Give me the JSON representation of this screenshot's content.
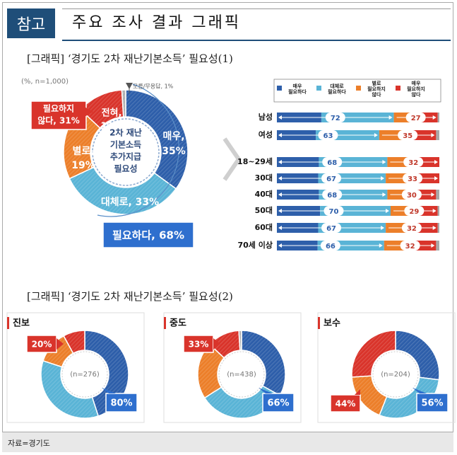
{
  "header": {
    "badge": "참고",
    "title": "주요 조사 결과 그래픽"
  },
  "section1": {
    "title": "[그래픽] ‘경기도 2차 재난기본소득’ 필요성(1)",
    "sample_note": "(%, n=1,000)",
    "small_note": "모름/무응답, 1%",
    "donut_center": [
      "2차 재난",
      "기본소득",
      "추가지급",
      "필요성"
    ],
    "labels": {
      "very": [
        "매우,",
        "35%"
      ],
      "somewhat": [
        "대체로, 33%"
      ],
      "not_much": [
        "별로,",
        "19%"
      ],
      "not_at_all": [
        "전혀,",
        "12%"
      ],
      "need_box": "필요하다, 68%",
      "not_need_box": [
        "필요하지",
        "않다, 31%"
      ]
    }
  },
  "legend": [
    {
      "label": [
        "매우",
        "필요하다"
      ],
      "color": "#2e5faa"
    },
    {
      "label": [
        "대체로",
        "필요하다"
      ],
      "color": "#5ab4d6"
    },
    {
      "label": [
        "별로",
        "필요하지",
        "않다"
      ],
      "color": "#ec7f2a"
    },
    {
      "label": [
        "매우",
        "필요하지",
        "않다"
      ],
      "color": "#d9342b"
    }
  ],
  "section2": {
    "title": "[그래픽] ‘경기도 2차 재난기본소득’ 필요성(2)",
    "panels": [
      {
        "name": "진보",
        "n": "(n=276)",
        "need": "80%",
        "notneed": "20%"
      },
      {
        "name": "중도",
        "n": "(n=438)",
        "need": "66%",
        "notneed": "33%"
      },
      {
        "name": "보수",
        "n": "(n=204)",
        "need": "56%",
        "notneed": "44%"
      }
    ]
  },
  "footer": {
    "source": "자료=경기도"
  },
  "chart_data": [
    {
      "type": "pie",
      "categories": [
        "매우",
        "대체로",
        "별로",
        "전혀",
        "모름/무응답"
      ],
      "values": [
        35,
        33,
        19,
        12,
        1
      ],
      "colors": [
        "#2e5faa",
        "#5ab4d6",
        "#ec7f2a",
        "#d9342b",
        "#b0b0b0"
      ]
    },
    {
      "type": "bar",
      "stacked": true,
      "orientation": "horizontal",
      "categories": [
        "남성",
        "여성",
        "18~29세",
        "30대",
        "40대",
        "50대",
        "60대",
        "70세 이상"
      ],
      "series": [
        {
          "name": "필요하다",
          "values": [
            72,
            63,
            68,
            67,
            68,
            70,
            67,
            66
          ]
        },
        {
          "name": "필요하지 않다",
          "values": [
            27,
            35,
            32,
            33,
            30,
            29,
            32,
            32
          ]
        }
      ]
    },
    {
      "type": "pie",
      "title": "진보",
      "categories": [
        "매우",
        "대체로",
        "별로",
        "전혀",
        "모름/무응답"
      ],
      "values": [
        45,
        35,
        12,
        8,
        0
      ],
      "need": 80,
      "notneed": 20
    },
    {
      "type": "pie",
      "title": "중도",
      "categories": [
        "매우",
        "대체로",
        "별로",
        "전혀",
        "모름/무응답"
      ],
      "values": [
        33,
        33,
        21,
        12,
        1
      ],
      "need": 66,
      "notneed": 33
    },
    {
      "type": "pie",
      "title": "보수",
      "categories": [
        "매우",
        "대체로",
        "별로",
        "전혀",
        "모름/무응답"
      ],
      "values": [
        27,
        29,
        18,
        26,
        0
      ],
      "need": 56,
      "notneed": 44
    }
  ]
}
